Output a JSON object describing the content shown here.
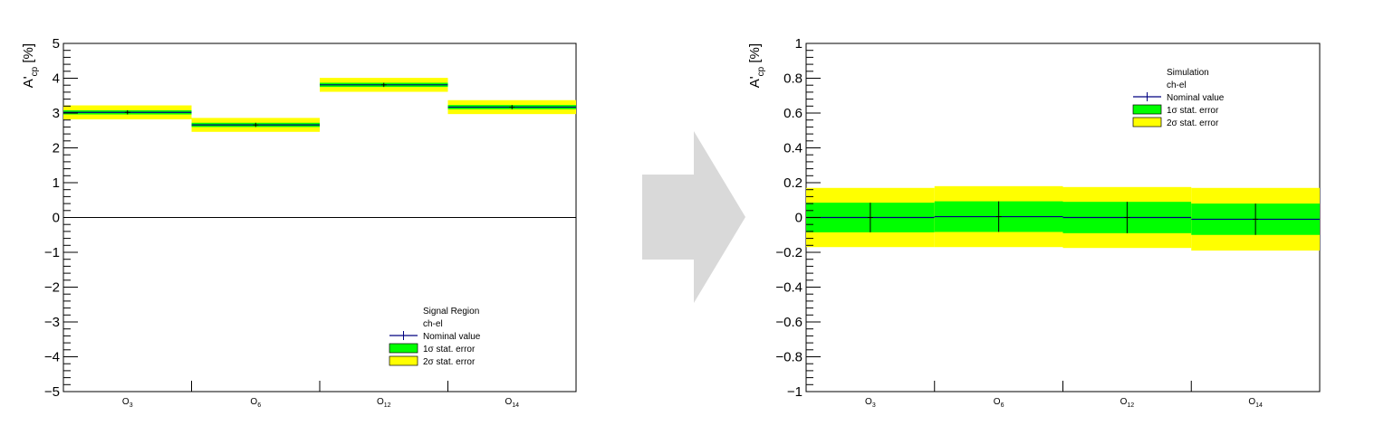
{
  "arrow_color": "#d9d9d9",
  "colors": {
    "one_sigma": "#00ff00",
    "two_sigma": "#ffff00",
    "nominal_line": "#000080",
    "marker": "#000000",
    "axis": "#000000"
  },
  "chart_data": [
    {
      "type": "bar",
      "title": "",
      "ylabel": "A'cp [%]",
      "ylabel_parts": {
        "main": "A'",
        "sub": "cp",
        "unit": " [%]"
      },
      "ylim": [
        -5,
        5
      ],
      "yticks": [
        -5,
        -4,
        -3,
        -2,
        -1,
        0,
        1,
        2,
        3,
        4,
        5
      ],
      "ytick_labels": [
        "−5",
        "−4",
        "−3",
        "−2",
        "−1",
        "0",
        "1",
        "2",
        "3",
        "4",
        "5"
      ],
      "zero_line": true,
      "categories": [
        "O3",
        "O6",
        "O12",
        "O14"
      ],
      "category_labels": [
        {
          "main": "O",
          "sub": "3"
        },
        {
          "main": "O",
          "sub": "6"
        },
        {
          "main": "O",
          "sub": "12"
        },
        {
          "main": "O",
          "sub": "14"
        }
      ],
      "values": [
        3.02,
        2.66,
        3.81,
        3.17
      ],
      "err_1sigma": [
        0.06,
        0.06,
        0.06,
        0.06
      ],
      "err_2sigma": [
        0.2,
        0.2,
        0.2,
        0.2
      ],
      "legend": {
        "position": "bottom-right",
        "header": [
          "Signal Region",
          "ch-el"
        ],
        "nominal": "Nominal value",
        "one_sigma_pre": "1",
        "one_sigma_post": " stat. error",
        "two_sigma_pre": "2",
        "two_sigma_post": " stat. error",
        "sigma_symbol": "σ"
      }
    },
    {
      "type": "bar",
      "title": "",
      "ylabel": "A'cp [%]",
      "ylabel_parts": {
        "main": "A'",
        "sub": "cp",
        "unit": " [%]"
      },
      "ylim": [
        -1,
        1
      ],
      "yticks": [
        -1,
        -0.8,
        -0.6,
        -0.4,
        -0.2,
        0,
        0.2,
        0.4,
        0.6,
        0.8,
        1
      ],
      "ytick_labels": [
        "−1",
        "−0.8",
        "−0.6",
        "−0.4",
        "−0.2",
        "0",
        "0.2",
        "0.4",
        "0.6",
        "0.8",
        "1"
      ],
      "zero_line": false,
      "categories": [
        "O3",
        "O6",
        "O12",
        "O14"
      ],
      "category_labels": [
        {
          "main": "O",
          "sub": "3"
        },
        {
          "main": "O",
          "sub": "6"
        },
        {
          "main": "O",
          "sub": "12"
        },
        {
          "main": "O",
          "sub": "14"
        }
      ],
      "values": [
        0.0,
        0.005,
        0.0,
        -0.01
      ],
      "err_1sigma": [
        0.085,
        0.088,
        0.09,
        0.09
      ],
      "err_2sigma": [
        0.17,
        0.175,
        0.175,
        0.18
      ],
      "legend": {
        "position": "top-right",
        "header": [
          "Simulation",
          "ch-el"
        ],
        "nominal": "Nominal value",
        "one_sigma_pre": "1",
        "one_sigma_post": " stat. error",
        "two_sigma_pre": "2",
        "two_sigma_post": " stat. error",
        "sigma_symbol": "σ"
      }
    }
  ]
}
